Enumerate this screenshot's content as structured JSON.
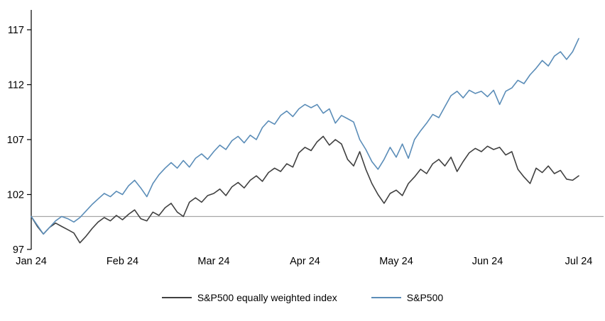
{
  "chart_data": {
    "type": "line",
    "title": "",
    "xlabel": "",
    "ylabel": "",
    "x_tick_labels": [
      "Jan 24",
      "Feb 24",
      "Mar 24",
      "Apr 24",
      "May 24",
      "Jun 24",
      "Jul 24"
    ],
    "y_ticks": [
      97,
      102,
      107,
      112,
      117
    ],
    "ylim": [
      97,
      117
    ],
    "reference_line_y": 100,
    "grid": false,
    "legend_position": "bottom",
    "points_per_month": 15,
    "series": [
      {
        "name": "S&P500 equally weighted index",
        "color": "#404040",
        "values": [
          100.0,
          99.1,
          98.4,
          99.0,
          99.4,
          99.1,
          98.8,
          98.5,
          97.6,
          98.2,
          98.9,
          99.5,
          99.9,
          99.6,
          100.1,
          99.7,
          100.2,
          100.6,
          99.8,
          99.6,
          100.4,
          100.1,
          100.8,
          101.2,
          100.4,
          100.0,
          101.3,
          101.7,
          101.3,
          101.9,
          102.1,
          102.5,
          101.9,
          102.7,
          103.1,
          102.6,
          103.3,
          103.7,
          103.2,
          104.0,
          104.4,
          104.1,
          104.8,
          104.5,
          105.8,
          106.3,
          106.0,
          106.8,
          107.3,
          106.5,
          107.0,
          106.6,
          105.2,
          104.6,
          105.9,
          104.3,
          103.0,
          102.0,
          101.2,
          102.1,
          102.4,
          101.9,
          103.0,
          103.6,
          104.3,
          103.9,
          104.8,
          105.2,
          104.6,
          105.4,
          104.1,
          105.0,
          105.8,
          106.2,
          105.9,
          106.4,
          106.1,
          106.3,
          105.6,
          105.9,
          104.3,
          103.6,
          103.0,
          104.4,
          104.0,
          104.6,
          103.9,
          104.2,
          103.4,
          103.3,
          103.7
        ]
      },
      {
        "name": "S&P500",
        "color": "#5b8db8",
        "values": [
          100.0,
          99.2,
          98.4,
          99.0,
          99.6,
          100.0,
          99.8,
          99.5,
          99.9,
          100.5,
          101.1,
          101.6,
          102.1,
          101.8,
          102.3,
          102.0,
          102.8,
          103.3,
          102.6,
          101.8,
          103.0,
          103.8,
          104.4,
          104.9,
          104.4,
          105.1,
          104.5,
          105.3,
          105.7,
          105.2,
          105.9,
          106.5,
          106.1,
          106.9,
          107.3,
          106.7,
          107.4,
          107.0,
          108.1,
          108.7,
          108.4,
          109.2,
          109.6,
          109.1,
          109.8,
          110.2,
          109.9,
          110.2,
          109.4,
          109.8,
          108.5,
          109.2,
          108.9,
          108.6,
          107.0,
          106.1,
          105.0,
          104.3,
          105.2,
          106.3,
          105.4,
          106.6,
          105.3,
          107.0,
          107.8,
          108.5,
          109.3,
          109.0,
          110.0,
          111.0,
          111.4,
          110.8,
          111.5,
          111.2,
          111.4,
          110.9,
          111.5,
          110.2,
          111.4,
          111.7,
          112.4,
          112.1,
          112.9,
          113.5,
          114.2,
          113.7,
          114.6,
          115.0,
          114.3,
          115.0,
          116.2
        ]
      }
    ]
  },
  "colors": {
    "background": "#ffffff",
    "axis": "#000000",
    "reference_line": "#a6a6a6",
    "tick_text": "#000000"
  }
}
